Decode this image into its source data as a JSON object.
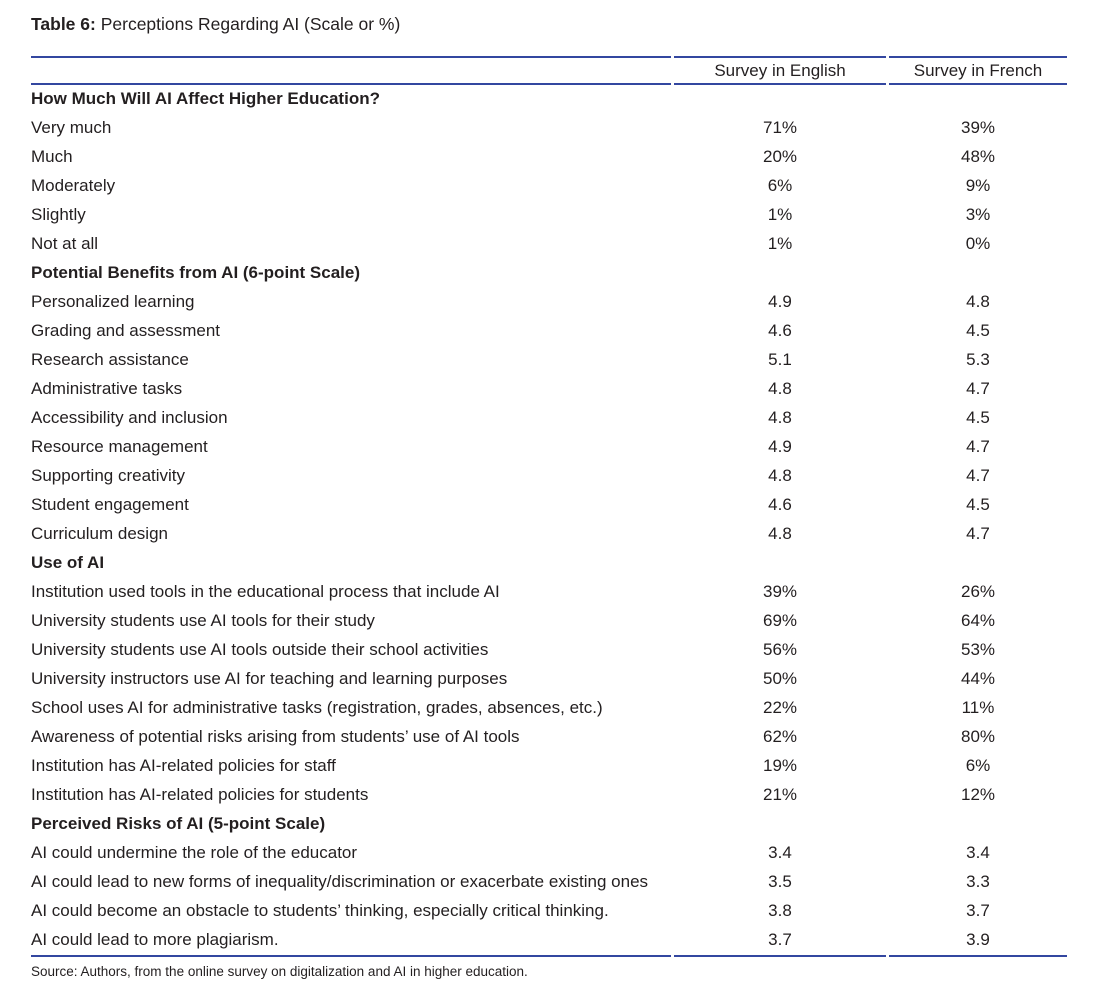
{
  "page": {
    "title_label": "Table 6:",
    "title_text": "Perceptions Regarding AI (Scale or %)",
    "source": "Source: Authors, from the online survey on digitalization and AI in higher education."
  },
  "colors": {
    "rule_blue": "#3347a0",
    "text": "#231f20"
  },
  "chart_data": {
    "type": "table",
    "title": "Table 6: Perceptions Regarding AI (Scale or %)",
    "columns": [
      "",
      "Survey in English",
      "Survey in French"
    ],
    "sections": [
      {
        "header": "How Much Will AI Affect Higher Education?",
        "rows": [
          {
            "label": "Very much",
            "english": "71%",
            "french": "39%"
          },
          {
            "label": "Much",
            "english": "20%",
            "french": "48%"
          },
          {
            "label": "Moderately",
            "english": "6%",
            "french": "9%"
          },
          {
            "label": "Slightly",
            "english": "1%",
            "french": "3%"
          },
          {
            "label": "Not at all",
            "english": "1%",
            "french": "0%"
          }
        ]
      },
      {
        "header": "Potential Benefits from AI (6-point Scale)",
        "rows": [
          {
            "label": "Personalized learning",
            "english": "4.9",
            "french": "4.8"
          },
          {
            "label": "Grading and assessment",
            "english": "4.6",
            "french": "4.5"
          },
          {
            "label": "Research assistance",
            "english": "5.1",
            "french": "5.3"
          },
          {
            "label": "Administrative tasks",
            "english": "4.8",
            "french": "4.7"
          },
          {
            "label": "Accessibility and inclusion",
            "english": "4.8",
            "french": "4.5"
          },
          {
            "label": "Resource management",
            "english": "4.9",
            "french": "4.7"
          },
          {
            "label": "Supporting creativity",
            "english": "4.8",
            "french": "4.7"
          },
          {
            "label": "Student engagement",
            "english": "4.6",
            "french": "4.5"
          },
          {
            "label": "Curriculum design",
            "english": "4.8",
            "french": "4.7"
          }
        ]
      },
      {
        "header": "Use of AI",
        "rows": [
          {
            "label": "Institution used tools in the educational process that include AI",
            "english": "39%",
            "french": "26%"
          },
          {
            "label": "University students use AI tools for their study",
            "english": "69%",
            "french": "64%"
          },
          {
            "label": "University students use AI tools outside their school activities",
            "english": "56%",
            "french": "53%"
          },
          {
            "label": "University instructors use AI for teaching and learning purposes",
            "english": "50%",
            "french": "44%"
          },
          {
            "label": "School uses AI for administrative tasks (registration, grades, absences, etc.)",
            "english": "22%",
            "french": "11%"
          },
          {
            "label": "Awareness of potential risks arising from students’ use of AI tools",
            "english": "62%",
            "french": "80%"
          },
          {
            "label": "Institution has AI-related policies for staff",
            "english": "19%",
            "french": "6%"
          },
          {
            "label": "Institution has AI-related policies for students",
            "english": "21%",
            "french": "12%"
          }
        ]
      },
      {
        "header": "Perceived Risks of AI (5-point Scale)",
        "rows": [
          {
            "label": "AI could undermine the role of the educator",
            "english": "3.4",
            "french": "3.4"
          },
          {
            "label": "AI could lead to new forms of inequality/discrimination or exacerbate existing ones",
            "english": "3.5",
            "french": "3.3"
          },
          {
            "label": "AI could become an obstacle to students’ thinking, especially critical thinking.",
            "english": "3.8",
            "french": "3.7"
          },
          {
            "label": "AI could lead to more plagiarism.",
            "english": "3.7",
            "french": "3.9"
          }
        ]
      }
    ]
  }
}
